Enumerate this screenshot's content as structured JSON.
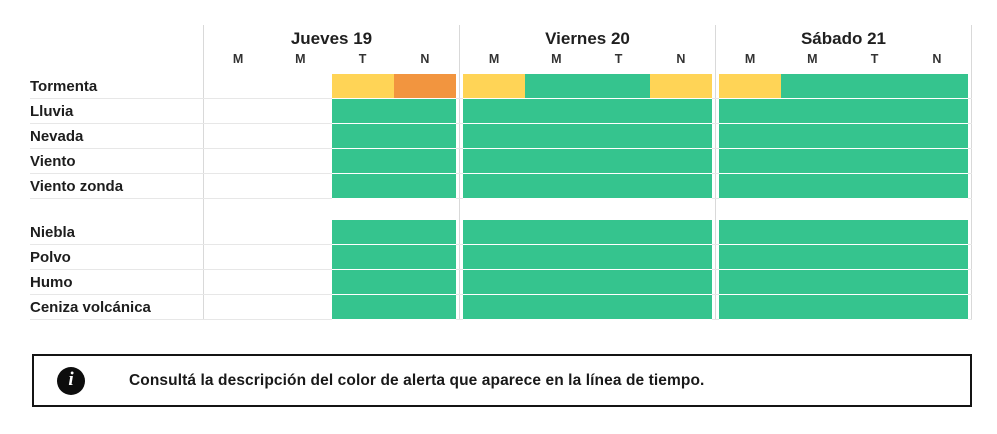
{
  "alert_colors": {
    "none": "",
    "green": "#35c48e",
    "yellow": "#ffd456",
    "orange": "#f2953f"
  },
  "line_colors": {
    "vertical_divider": "#d9d9d9",
    "row_separator": "#e7e7e7",
    "info_border": "#141414"
  },
  "header": {
    "days": [
      {
        "name": "Jueves 19",
        "periods": [
          "M",
          "M",
          "T",
          "N"
        ]
      },
      {
        "name": "Viernes 20",
        "periods": [
          "M",
          "M",
          "T",
          "N"
        ]
      },
      {
        "name": "Sábado 21",
        "periods": [
          "M",
          "M",
          "T",
          "N"
        ]
      }
    ]
  },
  "sections": [
    {
      "rows": [
        {
          "label": "Tormenta",
          "cells": [
            "none",
            "none",
            "yellow",
            "orange",
            "yellow",
            "green",
            "green",
            "yellow",
            "yellow",
            "green",
            "green",
            "green"
          ]
        },
        {
          "label": "Lluvia",
          "cells": [
            "none",
            "none",
            "green",
            "green",
            "green",
            "green",
            "green",
            "green",
            "green",
            "green",
            "green",
            "green"
          ]
        },
        {
          "label": "Nevada",
          "cells": [
            "none",
            "none",
            "green",
            "green",
            "green",
            "green",
            "green",
            "green",
            "green",
            "green",
            "green",
            "green"
          ]
        },
        {
          "label": "Viento",
          "cells": [
            "none",
            "none",
            "green",
            "green",
            "green",
            "green",
            "green",
            "green",
            "green",
            "green",
            "green",
            "green"
          ]
        },
        {
          "label": "Viento zonda",
          "cells": [
            "none",
            "none",
            "green",
            "green",
            "green",
            "green",
            "green",
            "green",
            "green",
            "green",
            "green",
            "green"
          ]
        }
      ]
    },
    {
      "rows": [
        {
          "label": "Niebla",
          "cells": [
            "none",
            "none",
            "green",
            "green",
            "green",
            "green",
            "green",
            "green",
            "green",
            "green",
            "green",
            "green"
          ]
        },
        {
          "label": "Polvo",
          "cells": [
            "none",
            "none",
            "green",
            "green",
            "green",
            "green",
            "green",
            "green",
            "green",
            "green",
            "green",
            "green"
          ]
        },
        {
          "label": "Humo",
          "cells": [
            "none",
            "none",
            "green",
            "green",
            "green",
            "green",
            "green",
            "green",
            "green",
            "green",
            "green",
            "green"
          ]
        },
        {
          "label": "Ceniza volcánica",
          "cells": [
            "none",
            "none",
            "green",
            "green",
            "green",
            "green",
            "green",
            "green",
            "green",
            "green",
            "green",
            "green"
          ]
        }
      ]
    }
  ],
  "info": {
    "icon": "i",
    "text": "Consultá la descripción del color de alerta que aparece en la línea de tiempo."
  }
}
